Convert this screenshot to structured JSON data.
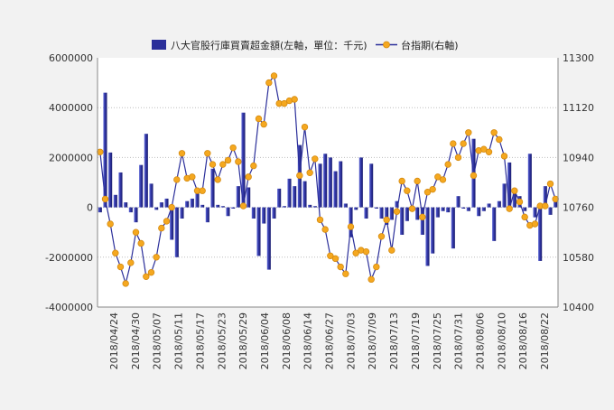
{
  "chart_data": {
    "type": "bar+line",
    "grid": true,
    "legend_position": "top",
    "left_axis": {
      "ylim": [
        -4000000,
        6000000
      ],
      "ticks": [
        "-4000000",
        "-2000000",
        "0",
        "2000000",
        "4000000",
        "6000000"
      ]
    },
    "right_axis": {
      "ylim": [
        10400,
        11300
      ],
      "ticks": [
        "10400",
        "10580",
        "10760",
        "10940",
        "11120",
        "11300"
      ]
    },
    "x_tick_labels": [
      "2018/04/24",
      "2018/04/30",
      "2018/05/07",
      "2018/05/11",
      "2018/05/17",
      "2018/05/23",
      "2018/05/29",
      "2018/06/04",
      "2018/06/08",
      "2018/06/14",
      "2018/06/27",
      "2018/07/03",
      "2018/07/09",
      "2018/07/13",
      "2018/07/19",
      "2018/07/25",
      "2018/07/31",
      "2018/08/06",
      "2018/08/10",
      "2018/08/16",
      "2018/08/22"
    ],
    "bar_series": {
      "name": "八大官股行庫買賣超金額(左軸，單位：千元)",
      "color": "#2b2f9a",
      "values": [
        -200000,
        4600000,
        2200000,
        500000,
        1400000,
        200000,
        -200000,
        -600000,
        1700000,
        2950000,
        950000,
        -100000,
        200000,
        350000,
        -1300000,
        -2000000,
        -450000,
        250000,
        350000,
        650000,
        100000,
        -600000,
        1550000,
        100000,
        50000,
        -350000,
        -50000,
        850000,
        3800000,
        800000,
        -450000,
        -1950000,
        -650000,
        -2500000,
        -450000,
        750000,
        50000,
        1150000,
        850000,
        2500000,
        1050000,
        100000,
        50000,
        1750000,
        2150000,
        2000000,
        1450000,
        1850000,
        150000,
        -1200000,
        -100000,
        2000000,
        -450000,
        1750000,
        -50000,
        -450000,
        -700000,
        -500000,
        250000,
        -1100000,
        -550000,
        -100000,
        -500000,
        -1100000,
        -2350000,
        -1850000,
        -400000,
        -150000,
        -200000,
        -1650000,
        450000,
        -50000,
        -150000,
        2750000,
        -350000,
        -150000,
        150000,
        -1350000,
        250000,
        950000,
        1800000,
        700000,
        450000,
        -150000,
        2150000,
        -400000,
        -2150000,
        850000,
        -300000,
        250000
      ]
    },
    "line_series": {
      "name": "台指期(右軸)",
      "line_color": "#2b2f9a",
      "marker_color": "#f5a81f",
      "values": [
        10960,
        10790,
        10700,
        10595,
        10545,
        10485,
        10560,
        10670,
        10630,
        10510,
        10525,
        10580,
        10685,
        10710,
        10760,
        10860,
        10955,
        10865,
        10870,
        10820,
        10820,
        10955,
        10915,
        10860,
        10915,
        10930,
        10975,
        10925,
        10765,
        10870,
        10910,
        11080,
        11060,
        11210,
        11235,
        11135,
        11135,
        11145,
        11150,
        10875,
        11050,
        10885,
        10935,
        10715,
        10680,
        10585,
        10575,
        10545,
        10520,
        10690,
        10595,
        10605,
        10600,
        10500,
        10545,
        10655,
        10715,
        10605,
        10745,
        10855,
        10820,
        10755,
        10855,
        10725,
        10815,
        10825,
        10870,
        10860,
        10915,
        10990,
        10940,
        10990,
        11030,
        10875,
        10965,
        10970,
        10960,
        11030,
        11005,
        10945,
        10755,
        10820,
        10780,
        10725,
        10695,
        10700,
        10765,
        10765,
        10845,
        10790
      ]
    }
  },
  "legend": {
    "bar_label": "八大官股行庫買賣超金額(左軸，單位：千元)",
    "line_label": "台指期(右軸)"
  }
}
